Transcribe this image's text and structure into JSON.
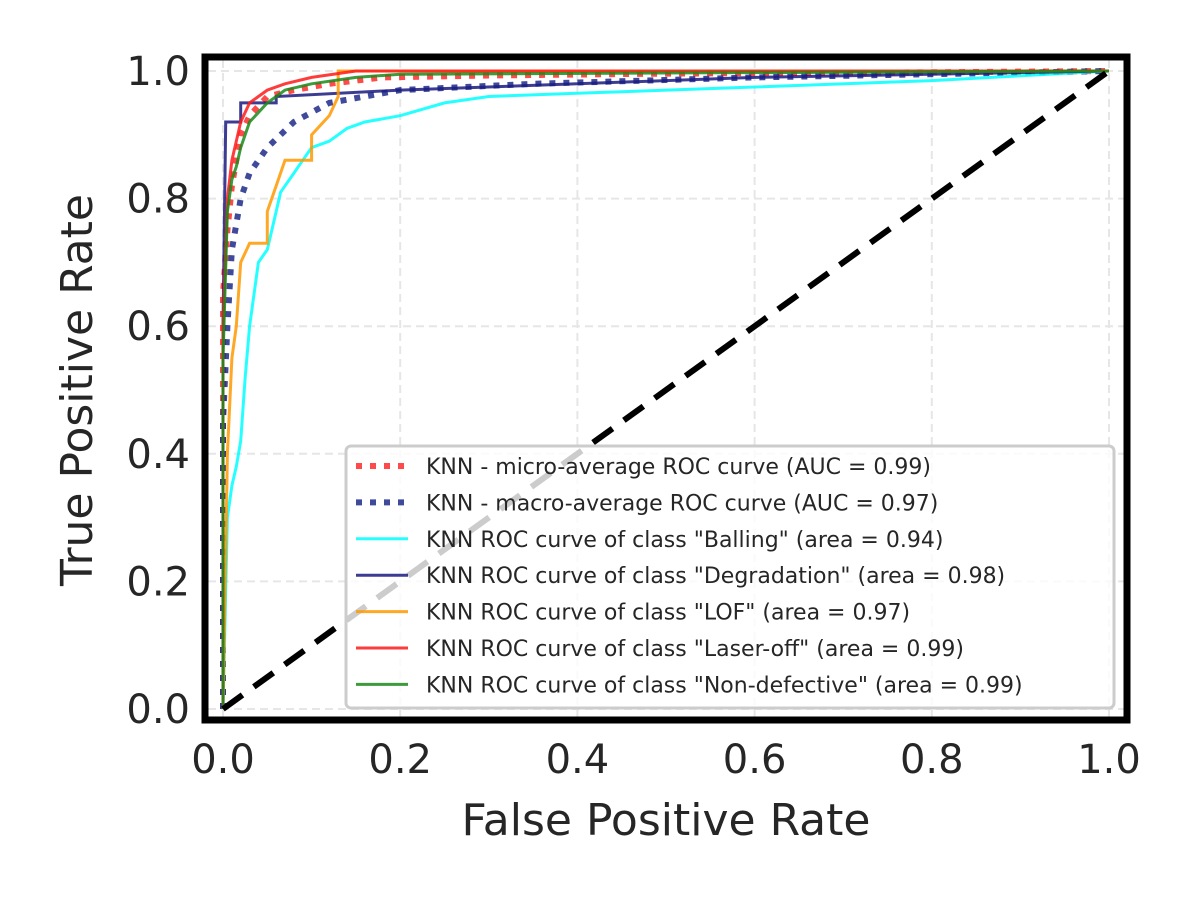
{
  "chart_data": {
    "type": "line",
    "xlabel": "False Positive Rate",
    "ylabel": "True Positive Rate",
    "xlim": [
      0.0,
      1.0
    ],
    "ylim": [
      0.0,
      1.0
    ],
    "xticks": [
      "0.0",
      "0.2",
      "0.4",
      "0.6",
      "0.8",
      "1.0"
    ],
    "yticks": [
      "0.0",
      "0.2",
      "0.4",
      "0.6",
      "0.8",
      "1.0"
    ],
    "grid": true,
    "legend_position": "lower-right",
    "series": [
      {
        "name": "KNN - micro-average ROC curve (AUC = 0.99)",
        "color": "#ff2a2a",
        "style": "dotted",
        "points": [
          [
            0,
            0
          ],
          [
            0,
            0.65
          ],
          [
            0.005,
            0.75
          ],
          [
            0.01,
            0.82
          ],
          [
            0.015,
            0.86
          ],
          [
            0.02,
            0.9
          ],
          [
            0.03,
            0.93
          ],
          [
            0.05,
            0.96
          ],
          [
            0.08,
            0.97
          ],
          [
            0.12,
            0.98
          ],
          [
            0.18,
            0.99
          ],
          [
            0.3,
            0.993
          ],
          [
            0.5,
            0.996
          ],
          [
            0.8,
            0.998
          ],
          [
            1,
            1
          ]
        ]
      },
      {
        "name": "KNN - macro-average ROC curve (AUC = 0.97)",
        "color": "#1f2a8a",
        "style": "dotted",
        "points": [
          [
            0,
            0
          ],
          [
            0,
            0.45
          ],
          [
            0.005,
            0.6
          ],
          [
            0.01,
            0.72
          ],
          [
            0.02,
            0.8
          ],
          [
            0.03,
            0.84
          ],
          [
            0.05,
            0.88
          ],
          [
            0.08,
            0.92
          ],
          [
            0.12,
            0.95
          ],
          [
            0.2,
            0.97
          ],
          [
            0.35,
            0.98
          ],
          [
            0.6,
            0.99
          ],
          [
            1,
            1
          ]
        ]
      },
      {
        "name": "KNN ROC curve of class \"Balling\" (area = 0.94)",
        "color": "#00ffff",
        "style": "solid",
        "points": [
          [
            0,
            0
          ],
          [
            0.005,
            0.3
          ],
          [
            0.01,
            0.35
          ],
          [
            0.015,
            0.38
          ],
          [
            0.02,
            0.42
          ],
          [
            0.025,
            0.52
          ],
          [
            0.03,
            0.6
          ],
          [
            0.035,
            0.65
          ],
          [
            0.04,
            0.7
          ],
          [
            0.05,
            0.72
          ],
          [
            0.06,
            0.78
          ],
          [
            0.065,
            0.81
          ],
          [
            0.08,
            0.84
          ],
          [
            0.09,
            0.86
          ],
          [
            0.1,
            0.88
          ],
          [
            0.12,
            0.89
          ],
          [
            0.14,
            0.91
          ],
          [
            0.16,
            0.92
          ],
          [
            0.2,
            0.93
          ],
          [
            0.25,
            0.95
          ],
          [
            0.3,
            0.96
          ],
          [
            0.4,
            0.965
          ],
          [
            0.6,
            0.975
          ],
          [
            0.8,
            0.985
          ],
          [
            1,
            1
          ]
        ]
      },
      {
        "name": "KNN ROC curve of class \"Degradation\" (area = 0.98)",
        "color": "#1a1a80",
        "style": "solid",
        "points": [
          [
            0,
            0
          ],
          [
            0,
            0.6
          ],
          [
            0.003,
            0.92
          ],
          [
            0.02,
            0.92
          ],
          [
            0.02,
            0.95
          ],
          [
            0.06,
            0.95
          ],
          [
            0.06,
            0.96
          ],
          [
            0.2,
            0.97
          ],
          [
            0.4,
            0.98
          ],
          [
            0.6,
            0.99
          ],
          [
            1,
            1
          ]
        ]
      },
      {
        "name": "KNN ROC curve of class \"LOF\" (area = 0.97)",
        "color": "#ff9900",
        "style": "solid",
        "points": [
          [
            0,
            0
          ],
          [
            0.005,
            0.4
          ],
          [
            0.01,
            0.55
          ],
          [
            0.015,
            0.6
          ],
          [
            0.02,
            0.7
          ],
          [
            0.03,
            0.73
          ],
          [
            0.05,
            0.73
          ],
          [
            0.05,
            0.78
          ],
          [
            0.06,
            0.82
          ],
          [
            0.07,
            0.86
          ],
          [
            0.1,
            0.86
          ],
          [
            0.1,
            0.9
          ],
          [
            0.12,
            0.93
          ],
          [
            0.13,
            0.96
          ],
          [
            0.13,
            1
          ],
          [
            1,
            1
          ]
        ]
      },
      {
        "name": "KNN ROC curve of class \"Laser-off\" (area = 0.99)",
        "color": "#ff1a1a",
        "style": "solid",
        "points": [
          [
            0,
            0
          ],
          [
            0,
            0.6
          ],
          [
            0.005,
            0.8
          ],
          [
            0.01,
            0.86
          ],
          [
            0.015,
            0.89
          ],
          [
            0.02,
            0.92
          ],
          [
            0.03,
            0.95
          ],
          [
            0.04,
            0.96
          ],
          [
            0.05,
            0.97
          ],
          [
            0.07,
            0.98
          ],
          [
            0.1,
            0.99
          ],
          [
            0.15,
            1
          ],
          [
            1,
            1
          ]
        ]
      },
      {
        "name": "KNN ROC curve of class \"Non-defective\" (area = 0.99)",
        "color": "#1a8a1a",
        "style": "solid",
        "points": [
          [
            0,
            0
          ],
          [
            0,
            0.55
          ],
          [
            0.005,
            0.78
          ],
          [
            0.01,
            0.83
          ],
          [
            0.015,
            0.85
          ],
          [
            0.02,
            0.88
          ],
          [
            0.03,
            0.92
          ],
          [
            0.05,
            0.95
          ],
          [
            0.07,
            0.97
          ],
          [
            0.1,
            0.98
          ],
          [
            0.15,
            0.99
          ],
          [
            0.2,
            0.995
          ],
          [
            1,
            1
          ]
        ]
      }
    ],
    "diagonal": {
      "color": "#000000",
      "style": "dashed",
      "points": [
        [
          0,
          0
        ],
        [
          1,
          1
        ]
      ]
    }
  }
}
